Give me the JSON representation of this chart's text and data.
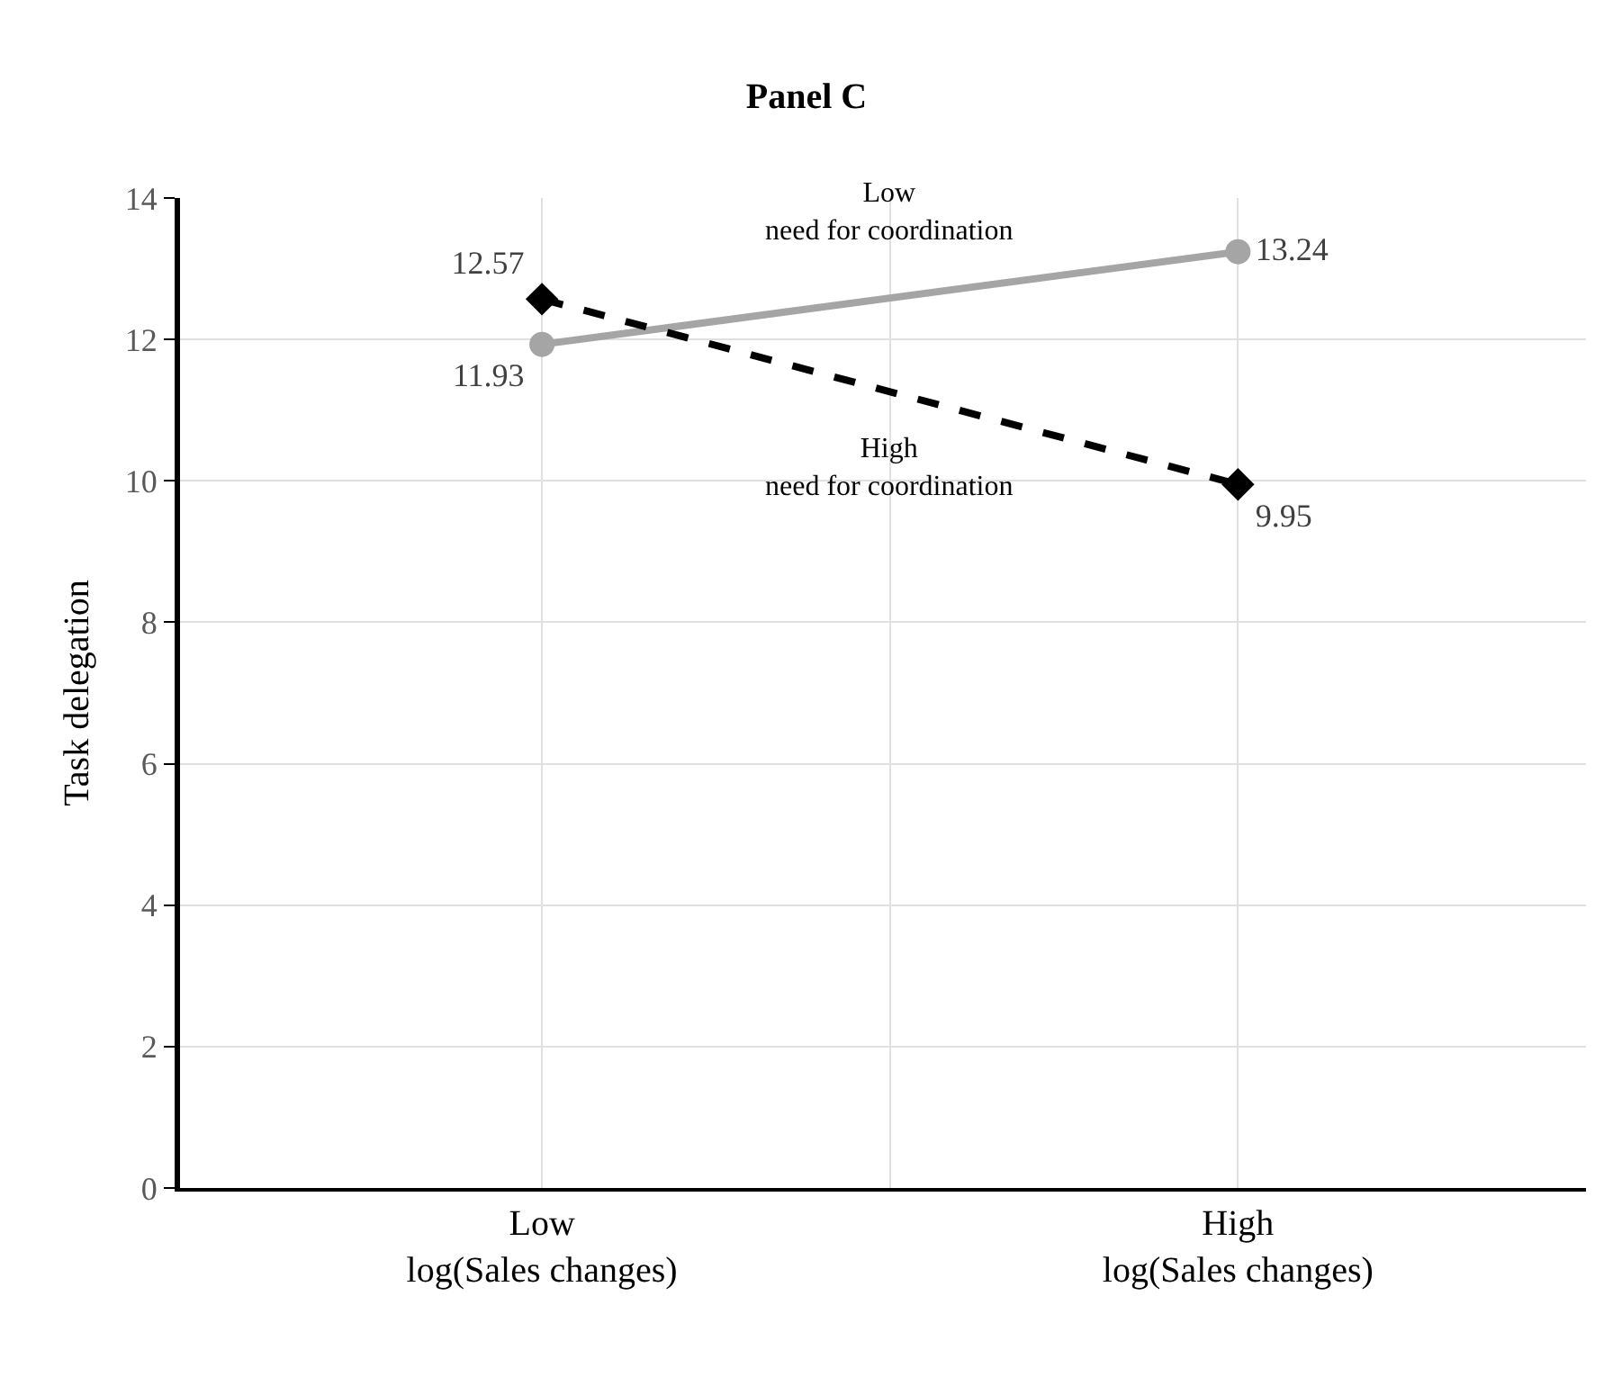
{
  "chart_data": {
    "type": "line",
    "title": "Panel C",
    "ylabel": "Task delegation",
    "categories": [
      "Low\nlog(Sales changes)",
      "High\nlog(Sales changes)"
    ],
    "series": [
      {
        "name": "Low\nneed for coordination",
        "color": "#a5a5a5",
        "values": [
          11.93,
          13.24
        ],
        "marker": "circle",
        "line_style": "solid"
      },
      {
        "name": "High\nneed for coordination",
        "color": "#000000",
        "values": [
          12.57,
          9.95
        ],
        "marker": "diamond",
        "line_style": "dashed"
      }
    ],
    "ylim": [
      0,
      14
    ],
    "yticks": [
      0,
      2,
      4,
      6,
      8,
      10,
      12,
      14
    ],
    "grid": true,
    "data_labels": true,
    "legend": false
  }
}
